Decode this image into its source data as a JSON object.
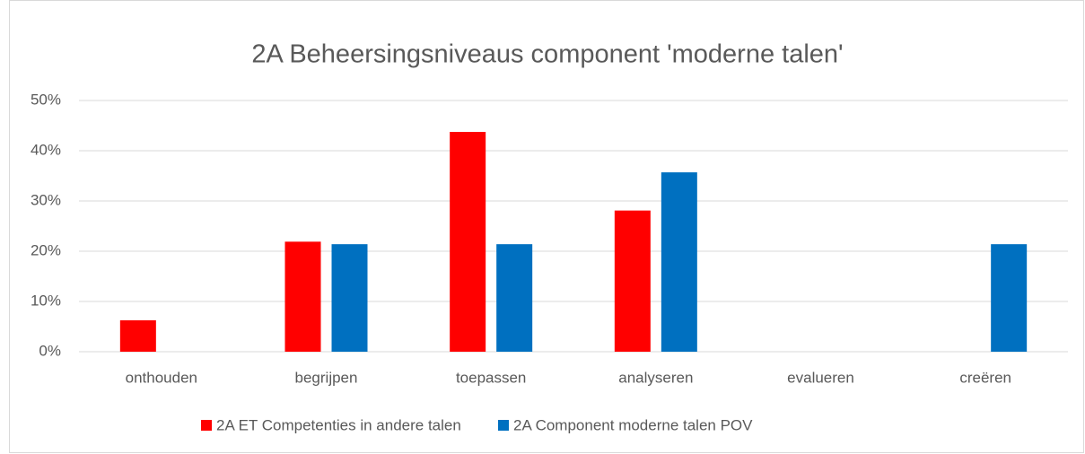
{
  "chart_data": {
    "type": "bar",
    "title": "2A Beheersingsniveaus component 'moderne talen'",
    "categories": [
      "onthouden",
      "begrijpen",
      "toepassen",
      "analyseren",
      "evalueren",
      "creëren"
    ],
    "series": [
      {
        "name": "2A ET Competenties in andere talen",
        "color": "#ff0000",
        "values": [
          6.25,
          21.9,
          43.75,
          28.1,
          0,
          0
        ]
      },
      {
        "name": "2A Component moderne talen POV",
        "color": "#0070c0",
        "values": [
          0,
          21.4,
          21.4,
          35.7,
          0,
          21.4
        ]
      }
    ],
    "ylim": [
      0,
      50
    ],
    "yticks": [
      {
        "value": 0,
        "label": "0%"
      },
      {
        "value": 10,
        "label": "10%"
      },
      {
        "value": 20,
        "label": "20%"
      },
      {
        "value": 30,
        "label": "30%"
      },
      {
        "value": 40,
        "label": "40%"
      },
      {
        "value": 50,
        "label": "50%"
      }
    ],
    "grid": true,
    "legend": "bottom"
  }
}
